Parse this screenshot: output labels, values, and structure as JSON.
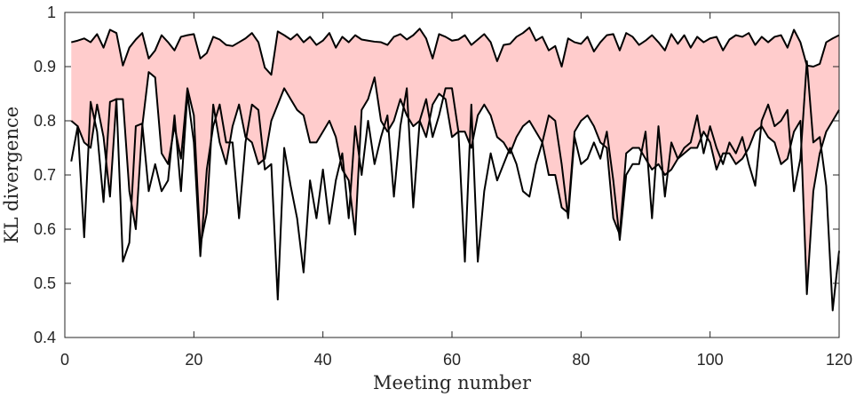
{
  "chart_data": {
    "type": "line",
    "title": "",
    "xlabel": "Meeting number",
    "ylabel": "KL divergence",
    "xlim": [
      0,
      120
    ],
    "ylim": [
      0.4,
      1
    ],
    "xticks": [
      0,
      20,
      40,
      60,
      80,
      100,
      120
    ],
    "yticks": [
      0.4,
      0.5,
      0.6,
      0.7,
      0.8,
      0.9,
      1
    ],
    "ytick_labels": [
      "0.4",
      "0.5",
      "0.6",
      "0.7",
      "0.8",
      "0.9",
      "1"
    ],
    "grid": false,
    "legend": "none",
    "colors": {
      "band_fill": "#ffcccc",
      "line": "#000000",
      "axes": "#262626"
    },
    "x": [
      1,
      2,
      3,
      4,
      5,
      6,
      7,
      8,
      9,
      10,
      11,
      12,
      13,
      14,
      15,
      16,
      17,
      18,
      19,
      20,
      21,
      22,
      23,
      24,
      25,
      26,
      27,
      28,
      29,
      30,
      31,
      32,
      33,
      34,
      35,
      36,
      37,
      38,
      39,
      40,
      41,
      42,
      43,
      44,
      45,
      46,
      47,
      48,
      49,
      50,
      51,
      52,
      53,
      54,
      55,
      56,
      57,
      58,
      59,
      60,
      61,
      62,
      63,
      64,
      65,
      66,
      67,
      68,
      69,
      70,
      71,
      72,
      73,
      74,
      75,
      76,
      77,
      78,
      79,
      80,
      81,
      82,
      83,
      84,
      85,
      86,
      87,
      88,
      89,
      90,
      91,
      92,
      93,
      94,
      95,
      96,
      97,
      98,
      99,
      100,
      101,
      102,
      103,
      104,
      105,
      106,
      107,
      108,
      109,
      110,
      111,
      112,
      113,
      114,
      115,
      116,
      117,
      118,
      119,
      120
    ],
    "series": [
      {
        "values": [
          0.945,
          0.948,
          0.952,
          0.945,
          0.96,
          0.935,
          0.968,
          0.962,
          0.902,
          0.935,
          0.95,
          0.962,
          0.915,
          0.93,
          0.958,
          0.945,
          0.93,
          0.955,
          0.958,
          0.96,
          0.915,
          0.925,
          0.955,
          0.95,
          0.94,
          0.938,
          0.945,
          0.952,
          0.962,
          0.945,
          0.898,
          0.885,
          0.965,
          0.958,
          0.95,
          0.96,
          0.945,
          0.955,
          0.94,
          0.948,
          0.962,
          0.935,
          0.955,
          0.945,
          0.958,
          0.95,
          0.948,
          0.946,
          0.945,
          0.94,
          0.955,
          0.96,
          0.95,
          0.958,
          0.97,
          0.952,
          0.915,
          0.96,
          0.955,
          0.948,
          0.95,
          0.958,
          0.94,
          0.95,
          0.96,
          0.945,
          0.91,
          0.94,
          0.942,
          0.955,
          0.962,
          0.972,
          0.948,
          0.955,
          0.93,
          0.938,
          0.9,
          0.952,
          0.945,
          0.942,
          0.955,
          0.928,
          0.945,
          0.958,
          0.96,
          0.93,
          0.962,
          0.955,
          0.94,
          0.948,
          0.958,
          0.945,
          0.93,
          0.96,
          0.942,
          0.958,
          0.935,
          0.955,
          0.945,
          0.952,
          0.955,
          0.93,
          0.95,
          0.958,
          0.955,
          0.962,
          0.94,
          0.955,
          0.945,
          0.955,
          0.958,
          0.935,
          0.968,
          0.945,
          0.902,
          0.9,
          0.905,
          0.945,
          0.952,
          0.958
        ]
      },
      {
        "values": [
          0.8,
          0.79,
          0.76,
          0.75,
          0.83,
          0.77,
          0.66,
          0.84,
          0.84,
          0.67,
          0.6,
          0.79,
          0.89,
          0.88,
          0.74,
          0.72,
          0.79,
          0.73,
          0.86,
          0.81,
          0.57,
          0.63,
          0.83,
          0.76,
          0.72,
          0.79,
          0.83,
          0.77,
          0.76,
          0.72,
          0.73,
          0.8,
          0.83,
          0.86,
          0.84,
          0.82,
          0.81,
          0.76,
          0.76,
          0.78,
          0.8,
          0.77,
          0.71,
          0.69,
          0.59,
          0.82,
          0.84,
          0.88,
          0.8,
          0.78,
          0.8,
          0.84,
          0.81,
          0.79,
          0.8,
          0.77,
          0.83,
          0.85,
          0.84,
          0.77,
          0.78,
          0.78,
          0.75,
          0.81,
          0.83,
          0.81,
          0.77,
          0.76,
          0.74,
          0.77,
          0.79,
          0.8,
          0.78,
          0.76,
          0.7,
          0.7,
          0.64,
          0.63,
          0.78,
          0.8,
          0.81,
          0.79,
          0.76,
          0.75,
          0.62,
          0.59,
          0.74,
          0.75,
          0.75,
          0.73,
          0.71,
          0.72,
          0.7,
          0.71,
          0.73,
          0.74,
          0.75,
          0.75,
          0.78,
          0.76,
          0.71,
          0.74,
          0.74,
          0.72,
          0.73,
          0.75,
          0.78,
          0.79,
          0.77,
          0.76,
          0.72,
          0.73,
          0.78,
          0.8,
          0.48,
          0.67,
          0.74,
          0.78,
          0.8,
          0.82
        ]
      },
      {
        "values": [
          0.725,
          0.79,
          0.585,
          0.835,
          0.78,
          0.65,
          0.835,
          0.84,
          0.54,
          0.575,
          0.79,
          0.795,
          0.67,
          0.72,
          0.67,
          0.69,
          0.81,
          0.67,
          0.85,
          0.76,
          0.55,
          0.71,
          0.79,
          0.83,
          0.76,
          0.76,
          0.62,
          0.76,
          0.83,
          0.82,
          0.71,
          0.72,
          0.47,
          0.75,
          0.68,
          0.62,
          0.52,
          0.69,
          0.62,
          0.71,
          0.61,
          0.69,
          0.74,
          0.62,
          0.79,
          0.7,
          0.8,
          0.72,
          0.77,
          0.81,
          0.66,
          0.79,
          0.86,
          0.64,
          0.8,
          0.84,
          0.77,
          0.81,
          0.86,
          0.86,
          0.78,
          0.54,
          0.83,
          0.54,
          0.67,
          0.74,
          0.69,
          0.72,
          0.75,
          0.72,
          0.67,
          0.66,
          0.72,
          0.76,
          0.81,
          0.8,
          0.72,
          0.62,
          0.77,
          0.72,
          0.73,
          0.76,
          0.73,
          0.78,
          0.69,
          0.58,
          0.7,
          0.72,
          0.72,
          0.78,
          0.62,
          0.79,
          0.66,
          0.76,
          0.73,
          0.75,
          0.76,
          0.81,
          0.74,
          0.79,
          0.75,
          0.72,
          0.76,
          0.74,
          0.77,
          0.72,
          0.68,
          0.8,
          0.83,
          0.79,
          0.8,
          0.82,
          0.67,
          0.73,
          0.91,
          0.76,
          0.77,
          0.68,
          0.45,
          0.56
        ]
      }
    ]
  }
}
